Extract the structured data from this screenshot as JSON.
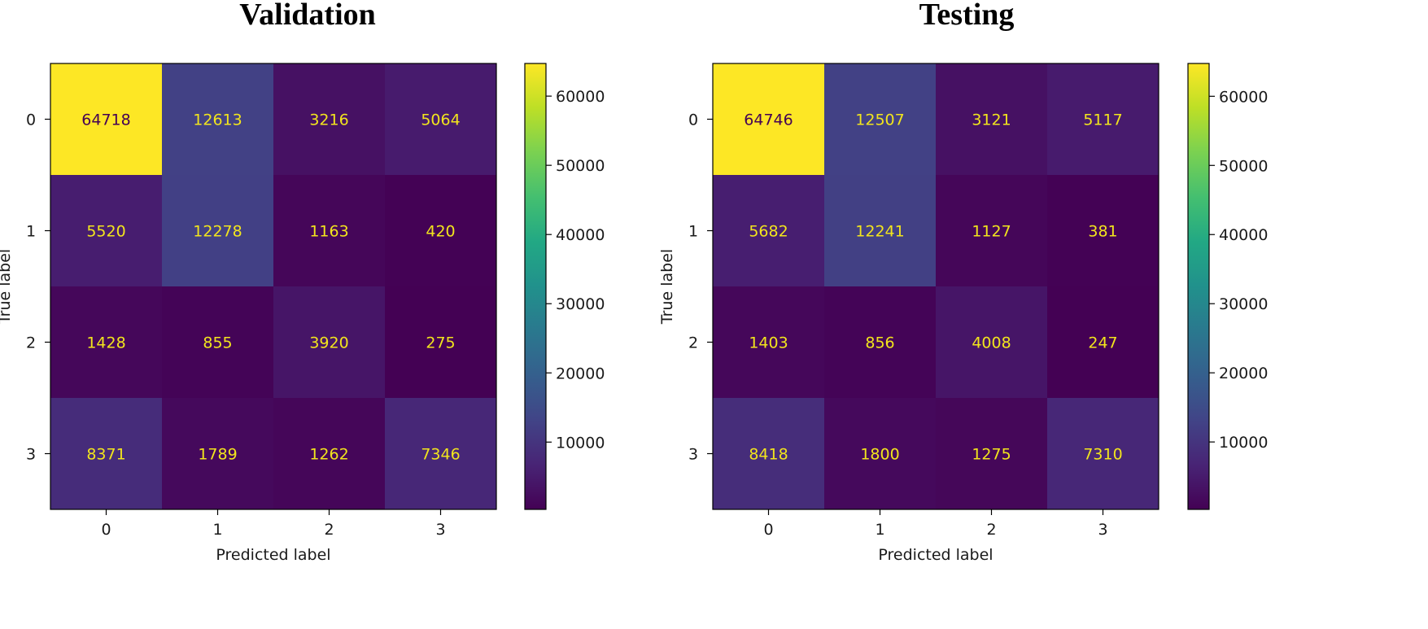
{
  "chart_data": [
    {
      "type": "heatmap",
      "title": "Validation",
      "xlabel": "Predicted label",
      "ylabel": "True label",
      "x_categories": [
        "0",
        "1",
        "2",
        "3"
      ],
      "y_categories": [
        "0",
        "1",
        "2",
        "3"
      ],
      "values": [
        [
          64718,
          12613,
          3216,
          5064
        ],
        [
          5520,
          12278,
          1163,
          420
        ],
        [
          1428,
          855,
          3920,
          275
        ],
        [
          8371,
          1789,
          1262,
          7346
        ]
      ],
      "colormap": "viridis",
      "colorbar": {
        "vmin": 275,
        "vmax": 64718,
        "ticks": [
          10000,
          20000,
          30000,
          40000,
          50000,
          60000
        ]
      }
    },
    {
      "type": "heatmap",
      "title": "Testing",
      "xlabel": "Predicted label",
      "ylabel": "True label",
      "x_categories": [
        "0",
        "1",
        "2",
        "3"
      ],
      "y_categories": [
        "0",
        "1",
        "2",
        "3"
      ],
      "values": [
        [
          64746,
          12507,
          3121,
          5117
        ],
        [
          5682,
          12241,
          1127,
          381
        ],
        [
          1403,
          856,
          4008,
          247
        ],
        [
          8418,
          1800,
          1275,
          7310
        ]
      ],
      "colormap": "viridis",
      "colorbar": {
        "vmin": 247,
        "vmax": 64746,
        "ticks": [
          10000,
          20000,
          30000,
          40000,
          50000,
          60000
        ]
      }
    }
  ],
  "colors": {
    "text_on_dark": "#f2e51d",
    "text_on_light": "#440154",
    "axis": "#000000",
    "background": "#ffffff"
  }
}
